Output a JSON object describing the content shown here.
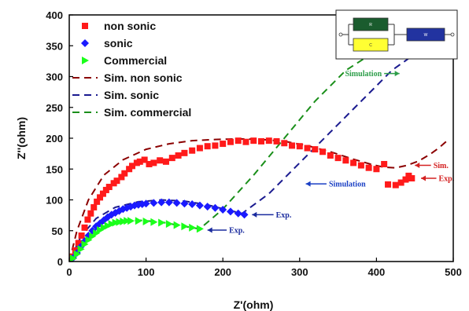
{
  "chart_data": {
    "type": "scatter",
    "title": "",
    "xlabel": "Z'(ohm)",
    "ylabel": "Z''(ohm)",
    "xlim": [
      0,
      500
    ],
    "ylim": [
      0,
      400
    ],
    "xticks": [
      "0",
      "100",
      "200",
      "300",
      "400",
      "500"
    ],
    "yticks": [
      "0",
      "50",
      "100",
      "150",
      "200",
      "250",
      "300",
      "350",
      "400"
    ],
    "legend_position": "top-left",
    "series": [
      {
        "name": "non sonic",
        "kind": "points",
        "marker": "square",
        "color": "#ff1a1a",
        "points": [
          [
            4,
            8
          ],
          [
            8,
            18
          ],
          [
            12,
            30
          ],
          [
            16,
            42
          ],
          [
            20,
            55
          ],
          [
            24,
            68
          ],
          [
            28,
            78
          ],
          [
            32,
            88
          ],
          [
            36,
            97
          ],
          [
            40,
            104
          ],
          [
            44,
            110
          ],
          [
            48,
            116
          ],
          [
            52,
            121
          ],
          [
            58,
            127
          ],
          [
            62,
            131
          ],
          [
            68,
            137
          ],
          [
            72,
            143
          ],
          [
            78,
            150
          ],
          [
            82,
            155
          ],
          [
            88,
            160
          ],
          [
            92,
            162
          ],
          [
            98,
            165
          ],
          [
            104,
            158
          ],
          [
            110,
            160
          ],
          [
            118,
            164
          ],
          [
            126,
            162
          ],
          [
            134,
            168
          ],
          [
            142,
            172
          ],
          [
            150,
            176
          ],
          [
            160,
            180
          ],
          [
            170,
            184
          ],
          [
            180,
            187
          ],
          [
            190,
            188
          ],
          [
            200,
            191
          ],
          [
            210,
            194
          ],
          [
            220,
            196
          ],
          [
            230,
            194
          ],
          [
            240,
            196
          ],
          [
            250,
            195
          ],
          [
            260,
            196
          ],
          [
            270,
            195
          ],
          [
            280,
            192
          ],
          [
            290,
            188
          ],
          [
            300,
            187
          ],
          [
            310,
            184
          ],
          [
            320,
            182
          ],
          [
            330,
            178
          ],
          [
            340,
            172
          ],
          [
            350,
            168
          ],
          [
            360,
            164
          ],
          [
            370,
            160
          ],
          [
            380,
            156
          ],
          [
            390,
            152
          ],
          [
            400,
            150
          ],
          [
            410,
            158
          ],
          [
            415,
            125
          ],
          [
            425,
            124
          ],
          [
            432,
            128
          ],
          [
            438,
            133
          ],
          [
            442,
            139
          ],
          [
            446,
            135
          ]
        ]
      },
      {
        "name": "sonic",
        "kind": "points",
        "marker": "diamond",
        "color": "#1a1aff",
        "points": [
          [
            5,
            6
          ],
          [
            10,
            14
          ],
          [
            15,
            24
          ],
          [
            20,
            33
          ],
          [
            25,
            42
          ],
          [
            30,
            50
          ],
          [
            35,
            57
          ],
          [
            40,
            62
          ],
          [
            45,
            67
          ],
          [
            50,
            72
          ],
          [
            55,
            76
          ],
          [
            60,
            79
          ],
          [
            65,
            82
          ],
          [
            70,
            85
          ],
          [
            75,
            87
          ],
          [
            80,
            89
          ],
          [
            85,
            91
          ],
          [
            90,
            92
          ],
          [
            95,
            93
          ],
          [
            100,
            94
          ],
          [
            110,
            95
          ],
          [
            120,
            96
          ],
          [
            130,
            96
          ],
          [
            140,
            95
          ],
          [
            150,
            94
          ],
          [
            160,
            93
          ],
          [
            170,
            91
          ],
          [
            180,
            89
          ],
          [
            190,
            87
          ],
          [
            200,
            84
          ],
          [
            210,
            81
          ],
          [
            220,
            78
          ],
          [
            228,
            76
          ]
        ]
      },
      {
        "name": "Commercial",
        "kind": "points",
        "marker": "triangle",
        "color": "#1aff1a",
        "points": [
          [
            5,
            5
          ],
          [
            10,
            12
          ],
          [
            15,
            20
          ],
          [
            20,
            28
          ],
          [
            25,
            35
          ],
          [
            30,
            41
          ],
          [
            35,
            46
          ],
          [
            40,
            51
          ],
          [
            45,
            55
          ],
          [
            50,
            58
          ],
          [
            55,
            61
          ],
          [
            60,
            63
          ],
          [
            65,
            64
          ],
          [
            70,
            65
          ],
          [
            75,
            66
          ],
          [
            80,
            66
          ],
          [
            90,
            66
          ],
          [
            100,
            65
          ],
          [
            110,
            64
          ],
          [
            120,
            63
          ],
          [
            130,
            61
          ],
          [
            140,
            59
          ],
          [
            150,
            57
          ],
          [
            160,
            55
          ],
          [
            170,
            53
          ]
        ]
      },
      {
        "name": "Sim. non sonic",
        "kind": "dashed",
        "color": "#8b0000",
        "points": [
          [
            0,
            0
          ],
          [
            10,
            50
          ],
          [
            25,
            100
          ],
          [
            45,
            140
          ],
          [
            70,
            165
          ],
          [
            100,
            182
          ],
          [
            130,
            191
          ],
          [
            160,
            196
          ],
          [
            190,
            198
          ],
          [
            220,
            199
          ],
          [
            250,
            198
          ],
          [
            280,
            195
          ],
          [
            310,
            188
          ],
          [
            340,
            178
          ],
          [
            370,
            166
          ],
          [
            395,
            157
          ],
          [
            410,
            153
          ],
          [
            425,
            152
          ],
          [
            440,
            156
          ],
          [
            455,
            163
          ],
          [
            470,
            174
          ],
          [
            482,
            185
          ],
          [
            492,
            196
          ]
        ]
      },
      {
        "name": "Sim. sonic",
        "kind": "dashed",
        "color": "#1a1a8f",
        "points": [
          [
            0,
            0
          ],
          [
            15,
            40
          ],
          [
            35,
            70
          ],
          [
            60,
            88
          ],
          [
            90,
            97
          ],
          [
            120,
            100
          ],
          [
            150,
            98
          ],
          [
            180,
            92
          ],
          [
            205,
            84
          ],
          [
            225,
            78
          ],
          [
            260,
            110
          ],
          [
            300,
            160
          ],
          [
            340,
            210
          ],
          [
            380,
            260
          ],
          [
            420,
            310
          ],
          [
            465,
            350
          ]
        ]
      },
      {
        "name": "Sim. commercial",
        "kind": "dashed",
        "color": "#1a8f1a",
        "points": [
          [
            0,
            0
          ],
          [
            15,
            30
          ],
          [
            35,
            52
          ],
          [
            60,
            64
          ],
          [
            90,
            67
          ],
          [
            120,
            64
          ],
          [
            150,
            57
          ],
          [
            170,
            53
          ],
          [
            200,
            85
          ],
          [
            240,
            140
          ],
          [
            280,
            200
          ],
          [
            320,
            260
          ],
          [
            360,
            310
          ],
          [
            385,
            330
          ],
          [
            410,
            350
          ],
          [
            440,
            372
          ]
        ]
      }
    ],
    "annotations": [
      {
        "text": "Simulation",
        "color": "#2e9e4a",
        "arrow_from": [
          410,
          305
        ],
        "arrow_to": [
          430,
          305
        ]
      },
      {
        "text": "Simulation",
        "color": "#1a3fc4",
        "arrow_from": [
          335,
          126
        ],
        "arrow_to": [
          308,
          126
        ]
      },
      {
        "text": "Exp.",
        "color": "#1a2b9e",
        "arrow_from": [
          266,
          76
        ],
        "arrow_to": [
          238,
          76
        ]
      },
      {
        "text": "Exp.",
        "color": "#1a2b9e",
        "arrow_from": [
          205,
          51
        ],
        "arrow_to": [
          180,
          51
        ]
      },
      {
        "text": "Sim.",
        "color": "#d42020",
        "arrow_from": [
          471,
          156
        ],
        "arrow_to": [
          450,
          156
        ]
      },
      {
        "text": "Exp.",
        "color": "#d42020",
        "arrow_from": [
          478,
          135
        ],
        "arrow_to": [
          458,
          135
        ]
      }
    ],
    "inset_circuit": {
      "components": [
        {
          "label": "R",
          "color": "#1a5c2e"
        },
        {
          "label": "C",
          "color": "#ffff33"
        },
        {
          "label": "W",
          "color": "#2233a0"
        }
      ]
    }
  }
}
